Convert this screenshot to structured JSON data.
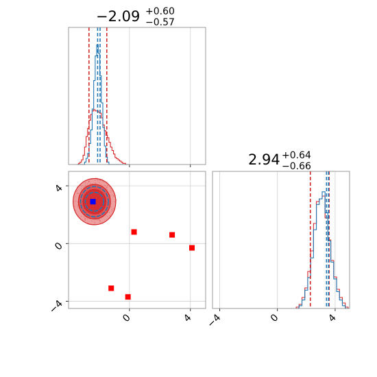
{
  "chart_data": {
    "type": "corner",
    "colors": {
      "red": "#d62728",
      "blue": "#1f77b4",
      "marker_red": "#ff0000",
      "marker_blue": "#0000ff",
      "grid": "#c8c8c8",
      "axis": "#808080"
    },
    "params": [
      {
        "summary": {
          "median": "−2.09",
          "plus": "+0.60",
          "minus": "−0.57"
        },
        "xlim": [
          -4.0,
          5.0
        ],
        "ticks": [
          0,
          4
        ],
        "tick_labels": [
          "0",
          "4"
        ],
        "red_quantiles": [
          -2.66,
          -1.49
        ],
        "blue_quantiles": [
          -2.09,
          -1.93
        ]
      },
      {
        "summary": {
          "median": "2.94",
          "plus": "+0.64",
          "minus": "−0.66"
        },
        "xlim": [
          -4.5,
          5.0
        ],
        "ticks": [
          -4,
          0,
          4
        ],
        "tick_labels": [
          "−4",
          "0",
          "4"
        ],
        "red_quantiles": [
          2.28,
          3.58
        ],
        "blue_quantiles": [
          3.4,
          3.54
        ]
      }
    ],
    "hist_0": {
      "bins": [
        -3.4,
        -3.3,
        -3.2,
        -3.1,
        -3.0,
        -2.9,
        -2.8,
        -2.7,
        -2.6,
        -2.5,
        -2.4,
        -2.3,
        -2.2,
        -2.1,
        -2.0,
        -1.9,
        -1.8,
        -1.7,
        -1.6,
        -1.5,
        -1.4,
        -1.3,
        -1.2,
        -1.1,
        -1.0,
        -0.9,
        -0.8,
        -0.7,
        -0.6,
        -0.5,
        -0.4,
        -0.3,
        -0.2,
        -0.1
      ],
      "red": [
        0.0,
        0.01,
        0.02,
        0.04,
        0.08,
        0.15,
        0.24,
        0.31,
        0.38,
        0.43,
        0.46,
        0.47,
        0.46,
        0.46,
        0.45,
        0.44,
        0.4,
        0.34,
        0.29,
        0.25,
        0.23,
        0.19,
        0.15,
        0.12,
        0.09,
        0.06,
        0.05,
        0.04,
        0.03,
        0.02,
        0.01,
        0.01,
        0.0,
        0.0
      ],
      "blue": [
        0.0,
        0.0,
        0.0,
        0.0,
        0.0,
        0.02,
        0.05,
        0.09,
        0.17,
        0.28,
        0.45,
        0.68,
        0.88,
        0.97,
        0.9,
        0.72,
        0.5,
        0.3,
        0.15,
        0.06,
        0.02,
        0.0,
        0.0,
        0.0,
        0.0,
        0.0,
        0.0,
        0.0,
        0.0,
        0.0,
        0.0,
        0.0,
        0.0,
        0.0
      ]
    },
    "hist_1": {
      "bins": [
        1.4,
        1.6,
        1.8,
        2.0,
        2.2,
        2.4,
        2.6,
        2.8,
        3.0,
        3.2,
        3.4,
        3.6,
        3.8,
        4.0,
        4.2,
        4.4,
        4.6,
        4.8
      ],
      "red": [
        0.01,
        0.03,
        0.08,
        0.15,
        0.27,
        0.42,
        0.62,
        0.78,
        0.8,
        0.82,
        0.66,
        0.5,
        0.35,
        0.23,
        0.14,
        0.08,
        0.04,
        0.01
      ],
      "blue": [
        0.0,
        0.02,
        0.06,
        0.13,
        0.22,
        0.36,
        0.56,
        0.74,
        0.78,
        0.83,
        0.68,
        0.48,
        0.33,
        0.21,
        0.12,
        0.06,
        0.02,
        0.0
      ]
    },
    "joint": {
      "contour_center": [
        -2.3,
        2.9
      ],
      "contour_radii": [
        [
          2.8,
          1.6
        ],
        [
          2.1,
          1.2
        ],
        [
          1.5,
          0.85
        ]
      ],
      "blue_contour_radii": [
        [
          1.35,
          1.05
        ],
        [
          0.9,
          0.65
        ]
      ],
      "blue_marker": {
        "x": -2.4,
        "y": 2.9
      },
      "red_markers": [
        {
          "x": 0.3,
          "y": 0.8
        },
        {
          "x": 2.8,
          "y": 0.6
        },
        {
          "x": 4.1,
          "y": -0.3
        },
        {
          "x": -1.2,
          "y": -3.1
        },
        {
          "x": -0.1,
          "y": -3.7
        }
      ],
      "ylim": [
        -4.5,
        5.0
      ],
      "yticks": [
        -4,
        0,
        4
      ],
      "ytick_labels": [
        "−4",
        "0",
        "4"
      ]
    }
  }
}
